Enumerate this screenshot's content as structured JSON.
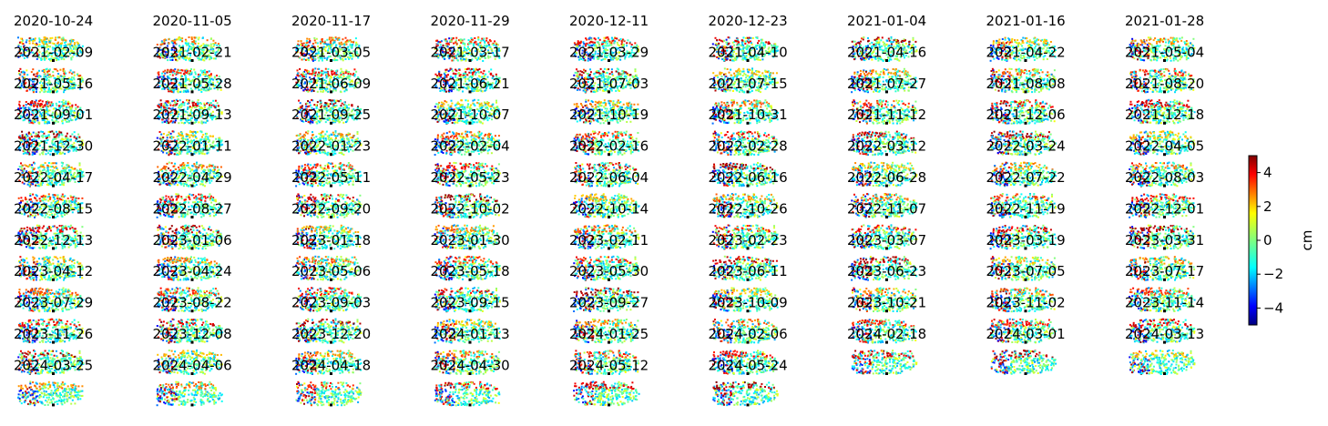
{
  "chart_data": {
    "type": "heatmap",
    "title": "",
    "grid": false,
    "layout": {
      "columns": 9,
      "rows": 12
    },
    "dates": [
      "2020-10-24",
      "2020-11-05",
      "2020-11-17",
      "2020-11-29",
      "2020-12-11",
      "2020-12-23",
      "2021-01-04",
      "2021-01-16",
      "2021-01-28",
      "2021-02-09",
      "2021-02-21",
      "2021-03-05",
      "2021-03-17",
      "2021-03-29",
      "2021-04-10",
      "2021-04-16",
      "2021-04-22",
      "2021-05-04",
      "2021-05-16",
      "2021-05-28",
      "2021-06-09",
      "2021-06-21",
      "2021-07-03",
      "2021-07-15",
      "2021-07-27",
      "2021-08-08",
      "2021-08-20",
      "2021-09-01",
      "2021-09-13",
      "2021-09-25",
      "2021-10-07",
      "2021-10-19",
      "2021-10-31",
      "2021-11-12",
      "2021-12-06",
      "2021-12-18",
      "2021-12-30",
      "2022-01-11",
      "2022-01-23",
      "2022-02-04",
      "2022-02-16",
      "2022-02-28",
      "2022-03-12",
      "2022-03-24",
      "2022-04-05",
      "2022-04-17",
      "2022-04-29",
      "2022-05-11",
      "2022-05-23",
      "2022-06-04",
      "2022-06-16",
      "2022-06-28",
      "2022-07-22",
      "2022-08-03",
      "2022-08-15",
      "2022-08-27",
      "2022-09-20",
      "2022-10-02",
      "2022-10-14",
      "2022-10-26",
      "2022-11-07",
      "2022-11-19",
      "2022-12-01",
      "2022-12-13",
      "2023-01-06",
      "2023-01-18",
      "2023-01-30",
      "2023-02-11",
      "2023-02-23",
      "2023-03-07",
      "2023-03-19",
      "2023-03-31",
      "2023-04-12",
      "2023-04-24",
      "2023-05-06",
      "2023-05-18",
      "2023-05-30",
      "2023-06-11",
      "2023-06-23",
      "2023-07-05",
      "2023-07-17",
      "2023-07-29",
      "2023-08-22",
      "2023-09-03",
      "2023-09-15",
      "2023-09-27",
      "2023-10-09",
      "2023-10-21",
      "2023-11-02",
      "2023-11-14",
      "2023-11-26",
      "2023-12-08",
      "2023-12-20",
      "2024-01-13",
      "2024-01-25",
      "2024-02-06",
      "2024-02-18",
      "2024-03-01",
      "2024-03-13",
      "2024-03-25",
      "2024-04-06",
      "2024-04-18",
      "2024-04-30",
      "2024-05-12",
      "2024-05-24"
    ],
    "colorbar": {
      "label": "cm",
      "colormap": "jet",
      "range": [
        -5,
        5
      ],
      "ticks": [
        -4,
        -2,
        0,
        2,
        4
      ],
      "tick_labels": [
        "−4",
        "−2",
        "0",
        "2",
        "4"
      ]
    }
  }
}
